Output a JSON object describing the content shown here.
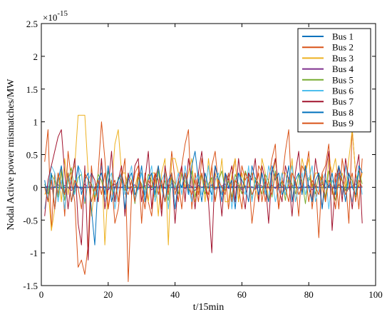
{
  "chart_data": {
    "type": "line",
    "title": "",
    "xlabel": "t/15min",
    "ylabel": "Nodal Active power mismatches/MW",
    "y_exponent_label": "×10",
    "y_exponent_power": "-15",
    "xlim": [
      0,
      100
    ],
    "ylim": [
      -1.5,
      2.5
    ],
    "xticks": [
      0,
      20,
      40,
      60,
      80,
      100
    ],
    "yticks": [
      -1.5,
      -1,
      -0.5,
      0,
      0.5,
      1,
      1.5,
      2,
      2.5
    ],
    "ytick_labels": [
      "-1.5",
      "-1",
      "-0.5",
      "0",
      "0.5",
      "1",
      "1.5",
      "2",
      "2.5"
    ],
    "grid": false,
    "legend_position": "top-right",
    "x": [
      1,
      2,
      3,
      4,
      5,
      6,
      7,
      8,
      9,
      10,
      11,
      12,
      13,
      14,
      15,
      16,
      17,
      18,
      19,
      20,
      21,
      22,
      23,
      24,
      25,
      26,
      27,
      28,
      29,
      30,
      31,
      32,
      33,
      34,
      35,
      36,
      37,
      38,
      39,
      40,
      41,
      42,
      43,
      44,
      45,
      46,
      47,
      48,
      49,
      50,
      51,
      52,
      53,
      54,
      55,
      56,
      57,
      58,
      59,
      60,
      61,
      62,
      63,
      64,
      65,
      66,
      67,
      68,
      69,
      70,
      71,
      72,
      73,
      74,
      75,
      76,
      77,
      78,
      79,
      80,
      81,
      82,
      83,
      84,
      85,
      86,
      87,
      88,
      89,
      90,
      91,
      92,
      93,
      94,
      95,
      96
    ],
    "series": [
      {
        "name": "Bus 1",
        "color": "#0072bd",
        "values": [
          0,
          0,
          0,
          0,
          0,
          0,
          0,
          0,
          0,
          0,
          0,
          0,
          0,
          0,
          0,
          0,
          0,
          0,
          0,
          0,
          0,
          0,
          0,
          0,
          0,
          0,
          0,
          0,
          0,
          0,
          0,
          0,
          0,
          0,
          0,
          0,
          0,
          0,
          0,
          0,
          0,
          0,
          0,
          0,
          0,
          0,
          0,
          0,
          0,
          0,
          0,
          0,
          0,
          0,
          0,
          0,
          0,
          0,
          0,
          0,
          0,
          0,
          0,
          0,
          0,
          0,
          0,
          0,
          0,
          0,
          0,
          0,
          0,
          0,
          0,
          0,
          0,
          0,
          0,
          0,
          0,
          0,
          0,
          0,
          0,
          0,
          0,
          0,
          0,
          0,
          0,
          0,
          0,
          0,
          0,
          0
        ]
      },
      {
        "name": "Bus 2",
        "color": "#d95319",
        "values": [
          0.39,
          0.88,
          -0.66,
          0.22,
          -0.11,
          0.28,
          -0.44,
          0.55,
          0.11,
          -0.22,
          -1.22,
          -1.11,
          -1.33,
          -0.88,
          0.33,
          -0.22,
          0.22,
          1.0,
          0.44,
          -0.33,
          0.11,
          -0.55,
          -0.33,
          0.11,
          0.44,
          -1.44,
          -0.11,
          0.22,
          0.33,
          -0.55,
          0.22,
          -0.22,
          -0.44,
          0.11,
          0.33,
          -0.33,
          0.22,
          -0.11,
          0.55,
          0.11,
          -0.22,
          0.33,
          0.66,
          0.88,
          -0.33,
          0.22,
          -0.11,
          0.44,
          0.11,
          -0.22,
          0.33,
          0.55,
          0.0,
          -0.11,
          0.22,
          -0.33,
          0.11,
          0.44,
          -0.22,
          0.33,
          0.11,
          0.22,
          -0.55,
          -0.11,
          0.33,
          0.22,
          -0.22,
          0.11,
          0.44,
          0.66,
          -0.33,
          0.11,
          0.55,
          0.88,
          -0.22,
          0.11,
          -0.44,
          0.33,
          0.22,
          0.55,
          -0.33,
          0.11,
          -0.77,
          0.22,
          0.33,
          0.66,
          -0.11,
          0.22,
          -0.33,
          0.44,
          0.11,
          -0.55,
          0.88,
          0.22,
          -0.33,
          0.44
        ]
      },
      {
        "name": "Bus 3",
        "color": "#edb120",
        "values": [
          -0.11,
          0.0,
          -0.66,
          -0.33,
          0.22,
          -0.22,
          0.44,
          -0.11,
          0.22,
          0.33,
          1.1,
          1.1,
          1.1,
          0.22,
          -0.44,
          0.0,
          -0.22,
          0.44,
          -0.88,
          0.0,
          0.0,
          0.66,
          0.88,
          0.22,
          0.22,
          0.0,
          0.0,
          0.0,
          0.22,
          0.22,
          0.0,
          -0.22,
          0.22,
          0.22,
          -0.44,
          0.22,
          0.44,
          -0.88,
          0.44,
          0.44,
          0.22,
          0.22,
          0.0,
          0.22,
          0.44,
          -0.22,
          0.0,
          0.22,
          -0.22,
          0.44,
          0.0,
          0.22,
          0.0,
          0.44,
          -0.22,
          -0.22,
          0.22,
          0.44,
          -0.22,
          0.22,
          0.0,
          0.0,
          0.22,
          0.0,
          -0.22,
          0.44,
          0.22,
          -0.22,
          0.0,
          0.44,
          0.0,
          0.22,
          0.22,
          0.0,
          0.44,
          -0.22,
          0.0,
          0.44,
          0.22,
          0.44,
          0.0,
          0.22,
          0.22,
          0.0,
          -0.22,
          0.44,
          0.22,
          0.44,
          0.0,
          0.22,
          0.0,
          0.44,
          0.88,
          0.22,
          0.0,
          0.22
        ]
      },
      {
        "name": "Bus 4",
        "color": "#7e2f8e",
        "values": [
          0.0,
          0.02,
          -0.03,
          0.01,
          0.04,
          -0.02,
          0.03,
          0.0,
          -0.05,
          0.02,
          0.01,
          -0.03,
          0.05,
          0.0,
          0.02,
          -0.02,
          0.03,
          0.0,
          0.01,
          -0.04,
          0.02,
          0.05,
          -0.01,
          0.0,
          0.03,
          -0.02,
          0.01,
          0.04,
          -0.03,
          0.0,
          0.02,
          0.05,
          -0.04,
          0.01,
          0.0,
          0.03,
          -0.02,
          0.01,
          0.06,
          -0.03,
          0.0,
          0.02,
          -0.02,
          0.04,
          0.01,
          -0.05,
          0.03,
          0.0,
          0.02,
          -0.01,
          0.04,
          -0.03,
          0.0,
          0.02,
          0.05,
          -0.02,
          0.01,
          0.0,
          0.03,
          -0.04,
          0.02,
          0.0,
          0.01,
          -0.03,
          0.04,
          0.02,
          -0.01,
          0.0,
          0.03,
          -0.02,
          0.05,
          0.01,
          -0.03,
          0.0,
          0.02,
          0.04,
          -0.02,
          0.01,
          0.0,
          0.03,
          -0.04,
          0.02,
          0.0,
          0.05,
          -0.01,
          0.03,
          0.0,
          -0.02,
          0.04,
          0.01,
          0.0,
          -0.03,
          0.02,
          0.05,
          0.0,
          0.01
        ]
      },
      {
        "name": "Bus 5",
        "color": "#77ac30",
        "values": [
          0.05,
          -0.1,
          0.2,
          0.1,
          -0.15,
          0.25,
          -0.2,
          0.1,
          0.3,
          -0.1,
          0.15,
          0.2,
          -0.25,
          0.1,
          0.05,
          -0.15,
          0.2,
          0.1,
          -0.1,
          0.25,
          0.0,
          -0.2,
          0.15,
          0.1,
          -0.05,
          0.2,
          0.1,
          -0.25,
          0.15,
          0.05,
          -0.1,
          0.2,
          0.1,
          -0.15,
          0.25,
          0.0,
          0.1,
          -0.2,
          0.15,
          0.05,
          -0.1,
          0.2,
          0.1,
          -0.05,
          0.25,
          -0.15,
          0.1,
          0.2,
          -0.1,
          0.05,
          0.15,
          -0.2,
          0.1,
          0.25,
          -0.05,
          0.1,
          -0.15,
          0.2,
          0.05,
          -0.1,
          0.25,
          0.1,
          -0.2,
          0.15,
          0.05,
          -0.1,
          0.2,
          0.1,
          -0.15,
          0.25,
          0.0,
          0.1,
          -0.2,
          0.15,
          0.05,
          -0.1,
          0.2,
          0.1,
          -0.25,
          0.15,
          0.05,
          -0.1,
          0.2,
          0.1,
          -0.15,
          0.25,
          0.0,
          -0.2,
          0.15,
          0.1,
          -0.05,
          0.2,
          0.1,
          -0.15,
          0.25,
          0.05
        ]
      },
      {
        "name": "Bus 6",
        "color": "#4dbeee",
        "values": [
          -0.33,
          0.0,
          0.33,
          0.22,
          -0.22,
          0.11,
          -0.33,
          0.22,
          0.0,
          -0.11,
          0.33,
          0.22,
          -0.22,
          0.11,
          0.22,
          -0.11,
          0.0,
          0.33,
          -0.22,
          0.11,
          0.22,
          -0.33,
          0.0,
          0.22,
          -0.11,
          0.11,
          0.33,
          -0.22,
          0.0,
          0.22,
          -0.11,
          0.11,
          0.33,
          -0.22,
          0.0,
          0.11,
          0.22,
          -0.33,
          0.11,
          0.0,
          0.22,
          -0.11,
          0.33,
          0.0,
          -0.22,
          0.11,
          0.22,
          -0.11,
          0.0,
          0.33,
          -0.22,
          0.11,
          0.22,
          -0.11,
          0.0,
          0.22,
          -0.33,
          0.11,
          0.22,
          0.0,
          -0.11,
          0.33,
          -0.22,
          0.11,
          0.0,
          0.22,
          -0.11,
          0.33,
          0.11,
          -0.22,
          0.0,
          0.22,
          -0.11,
          0.11,
          0.33,
          -0.22,
          0.0,
          0.22,
          -0.11,
          0.11,
          0.33,
          -0.22,
          0.0,
          0.11,
          0.22,
          -0.33,
          0.11,
          0.0,
          0.22,
          -0.11,
          0.33,
          0.0,
          -0.22,
          0.11,
          0.22,
          -0.11
        ]
      },
      {
        "name": "Bus 7",
        "color": "#a2142f",
        "values": [
          -0.44,
          0.11,
          0.33,
          0.55,
          0.77,
          0.88,
          0.22,
          -0.33,
          0.11,
          0.44,
          -0.55,
          -0.88,
          0.33,
          -1.11,
          0.22,
          0.11,
          -0.22,
          0.44,
          -0.33,
          0.0,
          0.55,
          -0.22,
          0.11,
          0.33,
          -0.44,
          0.22,
          -0.11,
          0.33,
          0.44,
          -0.22,
          0.11,
          0.55,
          -0.33,
          0.22,
          0.11,
          -0.44,
          0.33,
          0.0,
          0.22,
          -0.55,
          0.11,
          0.33,
          -0.22,
          0.44,
          0.11,
          -0.33,
          0.22,
          0.55,
          0.0,
          -0.22,
          -1.0,
          0.33,
          0.11,
          -0.44,
          0.22,
          0.11,
          0.33,
          -0.22,
          0.44,
          0.0,
          -0.33,
          0.22,
          0.11,
          0.44,
          -0.22,
          0.33,
          0.11,
          -0.55,
          0.22,
          0.44,
          0.0,
          -0.22,
          0.33,
          0.11,
          -0.44,
          0.22,
          0.55,
          -0.11,
          0.33,
          0.0,
          -0.22,
          0.44,
          0.11,
          -0.33,
          0.22,
          0.55,
          -0.66,
          0.11,
          0.33,
          -0.22,
          0.44,
          0.11,
          -0.33,
          0.22,
          0.5,
          -0.55
        ]
      },
      {
        "name": "Bus 8",
        "color": "#0072bd",
        "values": [
          0.11,
          -0.22,
          0.22,
          -0.33,
          0.11,
          0.33,
          -0.11,
          0.22,
          -0.22,
          0.0,
          0.33,
          -0.11,
          0.11,
          0.22,
          -0.33,
          -0.88,
          0.11,
          0.22,
          -0.11,
          0.33,
          -0.22,
          0.0,
          0.11,
          0.22,
          -0.33,
          0.11,
          0.22,
          -0.11,
          0.0,
          0.33,
          -0.22,
          0.11,
          0.22,
          -0.11,
          0.33,
          0.0,
          -0.22,
          0.11,
          0.22,
          -0.33,
          0.11,
          0.0,
          0.22,
          -0.11,
          0.33,
          0.55,
          0.11,
          -0.22,
          0.22,
          0.0,
          -0.11,
          0.33,
          0.11,
          -0.22,
          0.22,
          0.0,
          0.11,
          -0.33,
          0.22,
          0.11,
          0.0,
          -0.22,
          0.33,
          0.11,
          -0.11,
          0.22,
          0.0,
          -0.22,
          0.33,
          0.11,
          0.22,
          -0.11,
          0.0,
          0.33,
          -0.22,
          0.11,
          0.22,
          -0.11,
          0.33,
          0.0,
          -0.22,
          0.11,
          0.22,
          -0.33,
          0.11,
          0.0,
          0.22,
          -0.11,
          0.33,
          0.11,
          -0.22,
          0.22,
          0.0,
          -0.11,
          0.33,
          0.22
        ]
      },
      {
        "name": "Bus 9",
        "color": "#d95319",
        "values": [
          0.0,
          -0.22,
          0.11,
          -0.33,
          0.22,
          0.0,
          -0.11,
          0.22,
          -0.22,
          0.11,
          0.0,
          -0.33,
          0.22,
          0.11,
          -0.22,
          0.0,
          0.11,
          -0.11,
          0.22,
          -0.33,
          0.0,
          0.11,
          -0.22,
          0.22,
          0.0,
          -0.11,
          0.11,
          -0.22,
          0.22,
          0.0,
          -0.33,
          0.11,
          0.0,
          0.22,
          -0.11,
          0.11,
          -0.22,
          0.0,
          0.22,
          -0.11,
          0.11,
          -0.33,
          0.22,
          0.0,
          -0.11,
          0.11,
          -0.22,
          0.22,
          0.0,
          -0.11,
          0.33,
          -0.22,
          0.11,
          0.0,
          -0.11,
          0.22,
          -0.22,
          0.11,
          0.0,
          -0.33,
          0.22,
          0.11,
          -0.11,
          0.0,
          0.22,
          -0.22,
          0.11,
          0.0,
          -0.11,
          0.22,
          -0.33,
          0.11,
          0.0,
          -0.22,
          0.22,
          0.11,
          -0.11,
          0.0,
          0.22,
          -0.22,
          0.11,
          0.0,
          -0.11,
          0.22,
          -0.22,
          0.11,
          0.0,
          -0.33,
          0.22,
          0.11,
          -0.11,
          0.0,
          0.22,
          -0.22,
          0.11,
          0.0
        ]
      }
    ]
  }
}
